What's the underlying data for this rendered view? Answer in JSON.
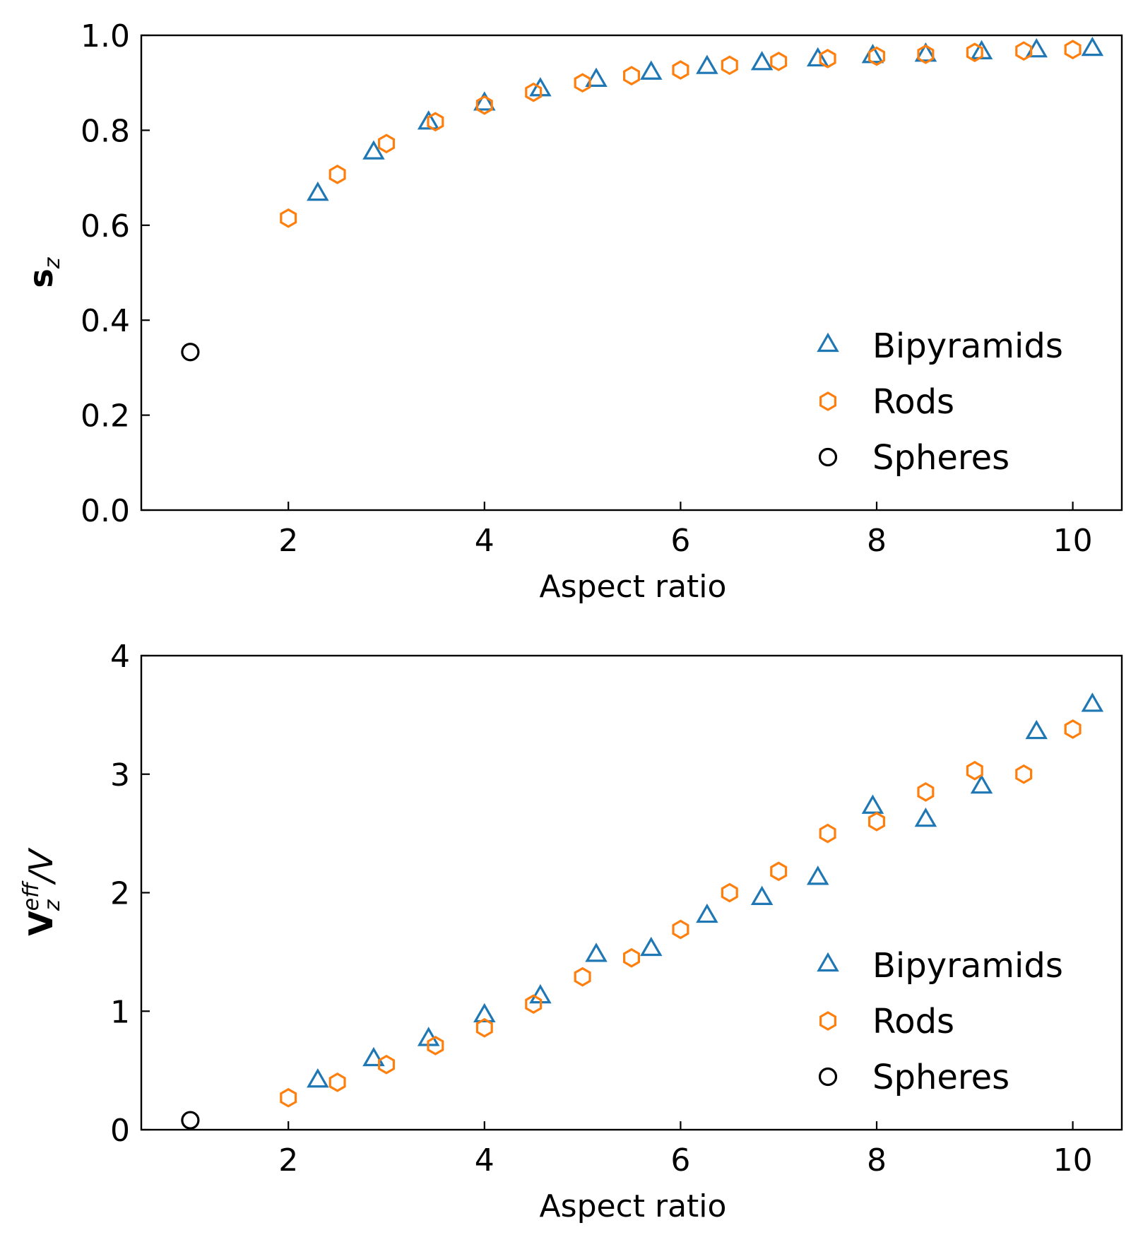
{
  "colors": {
    "bipyramids": "#1f77b4",
    "rods": "#ff7f0e",
    "spheres": "#000000",
    "axis": "#000000",
    "background": "#ffffff"
  },
  "chart_data": [
    {
      "type": "scatter",
      "title": "",
      "xlabel": "Aspect ratio",
      "ylabel_main": "s",
      "ylabel_sub": "z",
      "ylabel_sup": "",
      "ylabel_tail": "",
      "xlim": [
        0.5,
        10.5
      ],
      "ylim": [
        0.0,
        1.0
      ],
      "xticks": [
        2,
        4,
        6,
        8,
        10
      ],
      "xtick_labels": [
        "2",
        "4",
        "6",
        "8",
        "10"
      ],
      "yticks": [
        0.0,
        0.2,
        0.4,
        0.6,
        0.8,
        1.0
      ],
      "ytick_labels": [
        "0.0",
        "0.2",
        "0.4",
        "0.6",
        "0.8",
        "1.0"
      ],
      "grid": false,
      "legend_position": "lower-right",
      "legend": [
        "Bipyramids",
        "Rods",
        "Spheres"
      ],
      "series": [
        {
          "name": "Bipyramids",
          "marker": "triangle",
          "x": [
            2.3,
            2.87,
            3.43,
            4.0,
            4.57,
            5.14,
            5.7,
            6.27,
            6.83,
            7.4,
            7.96,
            8.5,
            9.07,
            9.63,
            10.2
          ],
          "y": [
            0.665,
            0.752,
            0.815,
            0.855,
            0.885,
            0.905,
            0.92,
            0.932,
            0.94,
            0.948,
            0.955,
            0.958,
            0.963,
            0.967,
            0.97
          ]
        },
        {
          "name": "Rods",
          "marker": "hexagon",
          "x": [
            2.0,
            2.5,
            3.0,
            3.5,
            4.0,
            4.5,
            5.0,
            5.5,
            6.0,
            6.5,
            7.0,
            7.5,
            8.0,
            8.5,
            9.0,
            9.5,
            10.0
          ],
          "y": [
            0.615,
            0.707,
            0.772,
            0.818,
            0.853,
            0.88,
            0.9,
            0.915,
            0.927,
            0.937,
            0.945,
            0.951,
            0.956,
            0.96,
            0.964,
            0.967,
            0.97
          ]
        },
        {
          "name": "Spheres",
          "marker": "circle",
          "x": [
            1.0
          ],
          "y": [
            0.333
          ]
        }
      ]
    },
    {
      "type": "scatter",
      "title": "",
      "xlabel": "Aspect ratio",
      "ylabel_main": "V",
      "ylabel_sub": "z",
      "ylabel_sup": "eff",
      "ylabel_tail": "/V",
      "xlim": [
        0.5,
        10.5
      ],
      "ylim": [
        0,
        4
      ],
      "xticks": [
        2,
        4,
        6,
        8,
        10
      ],
      "xtick_labels": [
        "2",
        "4",
        "6",
        "8",
        "10"
      ],
      "yticks": [
        0,
        1,
        2,
        3,
        4
      ],
      "ytick_labels": [
        "0",
        "1",
        "2",
        "3",
        "4"
      ],
      "grid": false,
      "legend_position": "lower-right",
      "legend": [
        "Bipyramids",
        "Rods",
        "Spheres"
      ],
      "series": [
        {
          "name": "Bipyramids",
          "marker": "triangle",
          "x": [
            2.3,
            2.87,
            3.43,
            4.0,
            4.57,
            5.14,
            5.7,
            6.27,
            6.83,
            7.4,
            7.96,
            8.5,
            9.07,
            9.63,
            10.2
          ],
          "y": [
            0.41,
            0.59,
            0.76,
            0.96,
            1.12,
            1.47,
            1.52,
            1.8,
            1.95,
            2.12,
            2.72,
            2.61,
            2.89,
            3.35,
            3.58
          ]
        },
        {
          "name": "Rods",
          "marker": "hexagon",
          "x": [
            2.0,
            2.5,
            3.0,
            3.5,
            4.0,
            4.5,
            5.0,
            5.5,
            6.0,
            6.5,
            7.0,
            7.5,
            8.0,
            8.5,
            9.0,
            9.5,
            10.0
          ],
          "y": [
            0.27,
            0.4,
            0.55,
            0.71,
            0.86,
            1.06,
            1.29,
            1.45,
            1.69,
            2.0,
            2.18,
            2.5,
            2.6,
            2.85,
            3.03,
            3.0,
            3.38
          ]
        },
        {
          "name": "Spheres",
          "marker": "circle",
          "x": [
            1.0
          ],
          "y": [
            0.08
          ]
        }
      ]
    }
  ]
}
